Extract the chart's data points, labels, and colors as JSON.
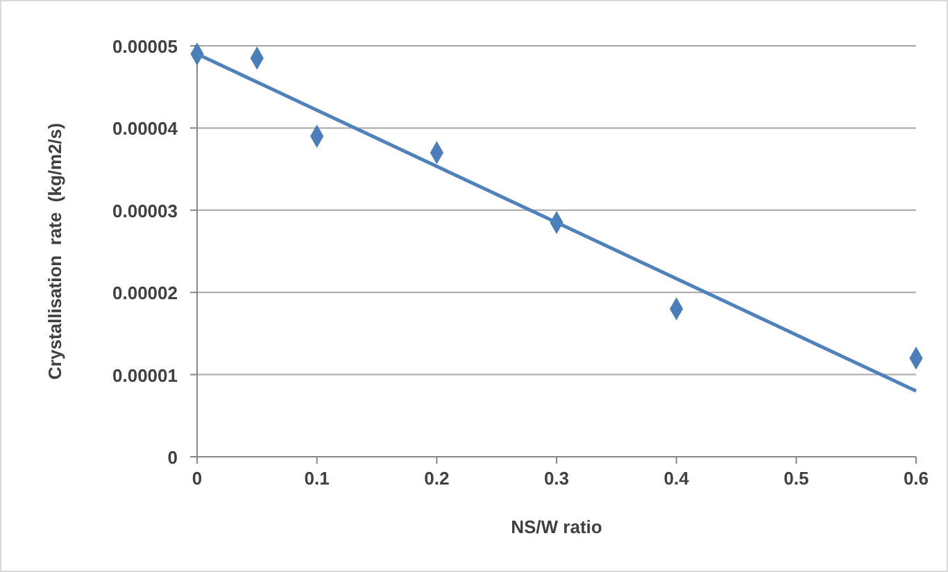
{
  "chart_data": {
    "type": "scatter",
    "xlabel": "NS/W ratio",
    "ylabel": "Crystallisation  rate  (kg/m2/s)",
    "series": [
      {
        "color": "#4a7ebb",
        "x": [
          0,
          0.05,
          0.1,
          0.2,
          0.3,
          0.4,
          0.6
        ],
        "values": [
          4.9e-05,
          4.85e-05,
          3.9e-05,
          3.7e-05,
          2.85e-05,
          1.8e-05,
          1.2e-05
        ],
        "marker": "diamond"
      },
      {
        "type": "line",
        "color": "#4f81bd",
        "x": [
          0,
          0.6
        ],
        "values": [
          4.9e-05,
          8e-06
        ],
        "marker": "none"
      }
    ],
    "xlim": [
      0,
      0.6
    ],
    "xticks": [
      0,
      0.1,
      0.2,
      0.3,
      0.4,
      0.5,
      0.6
    ],
    "ylim": [
      0,
      5e-05
    ],
    "yticks": [
      {
        "value": 0,
        "label": "0"
      },
      {
        "value": 1e-05,
        "label": "0.00001"
      },
      {
        "value": 2e-05,
        "label": "0.00002"
      },
      {
        "value": 3e-05,
        "label": "0.00003"
      },
      {
        "value": 4e-05,
        "label": "0.00004"
      },
      {
        "value": 5e-05,
        "label": "0.00005"
      }
    ],
    "grid": "y"
  }
}
